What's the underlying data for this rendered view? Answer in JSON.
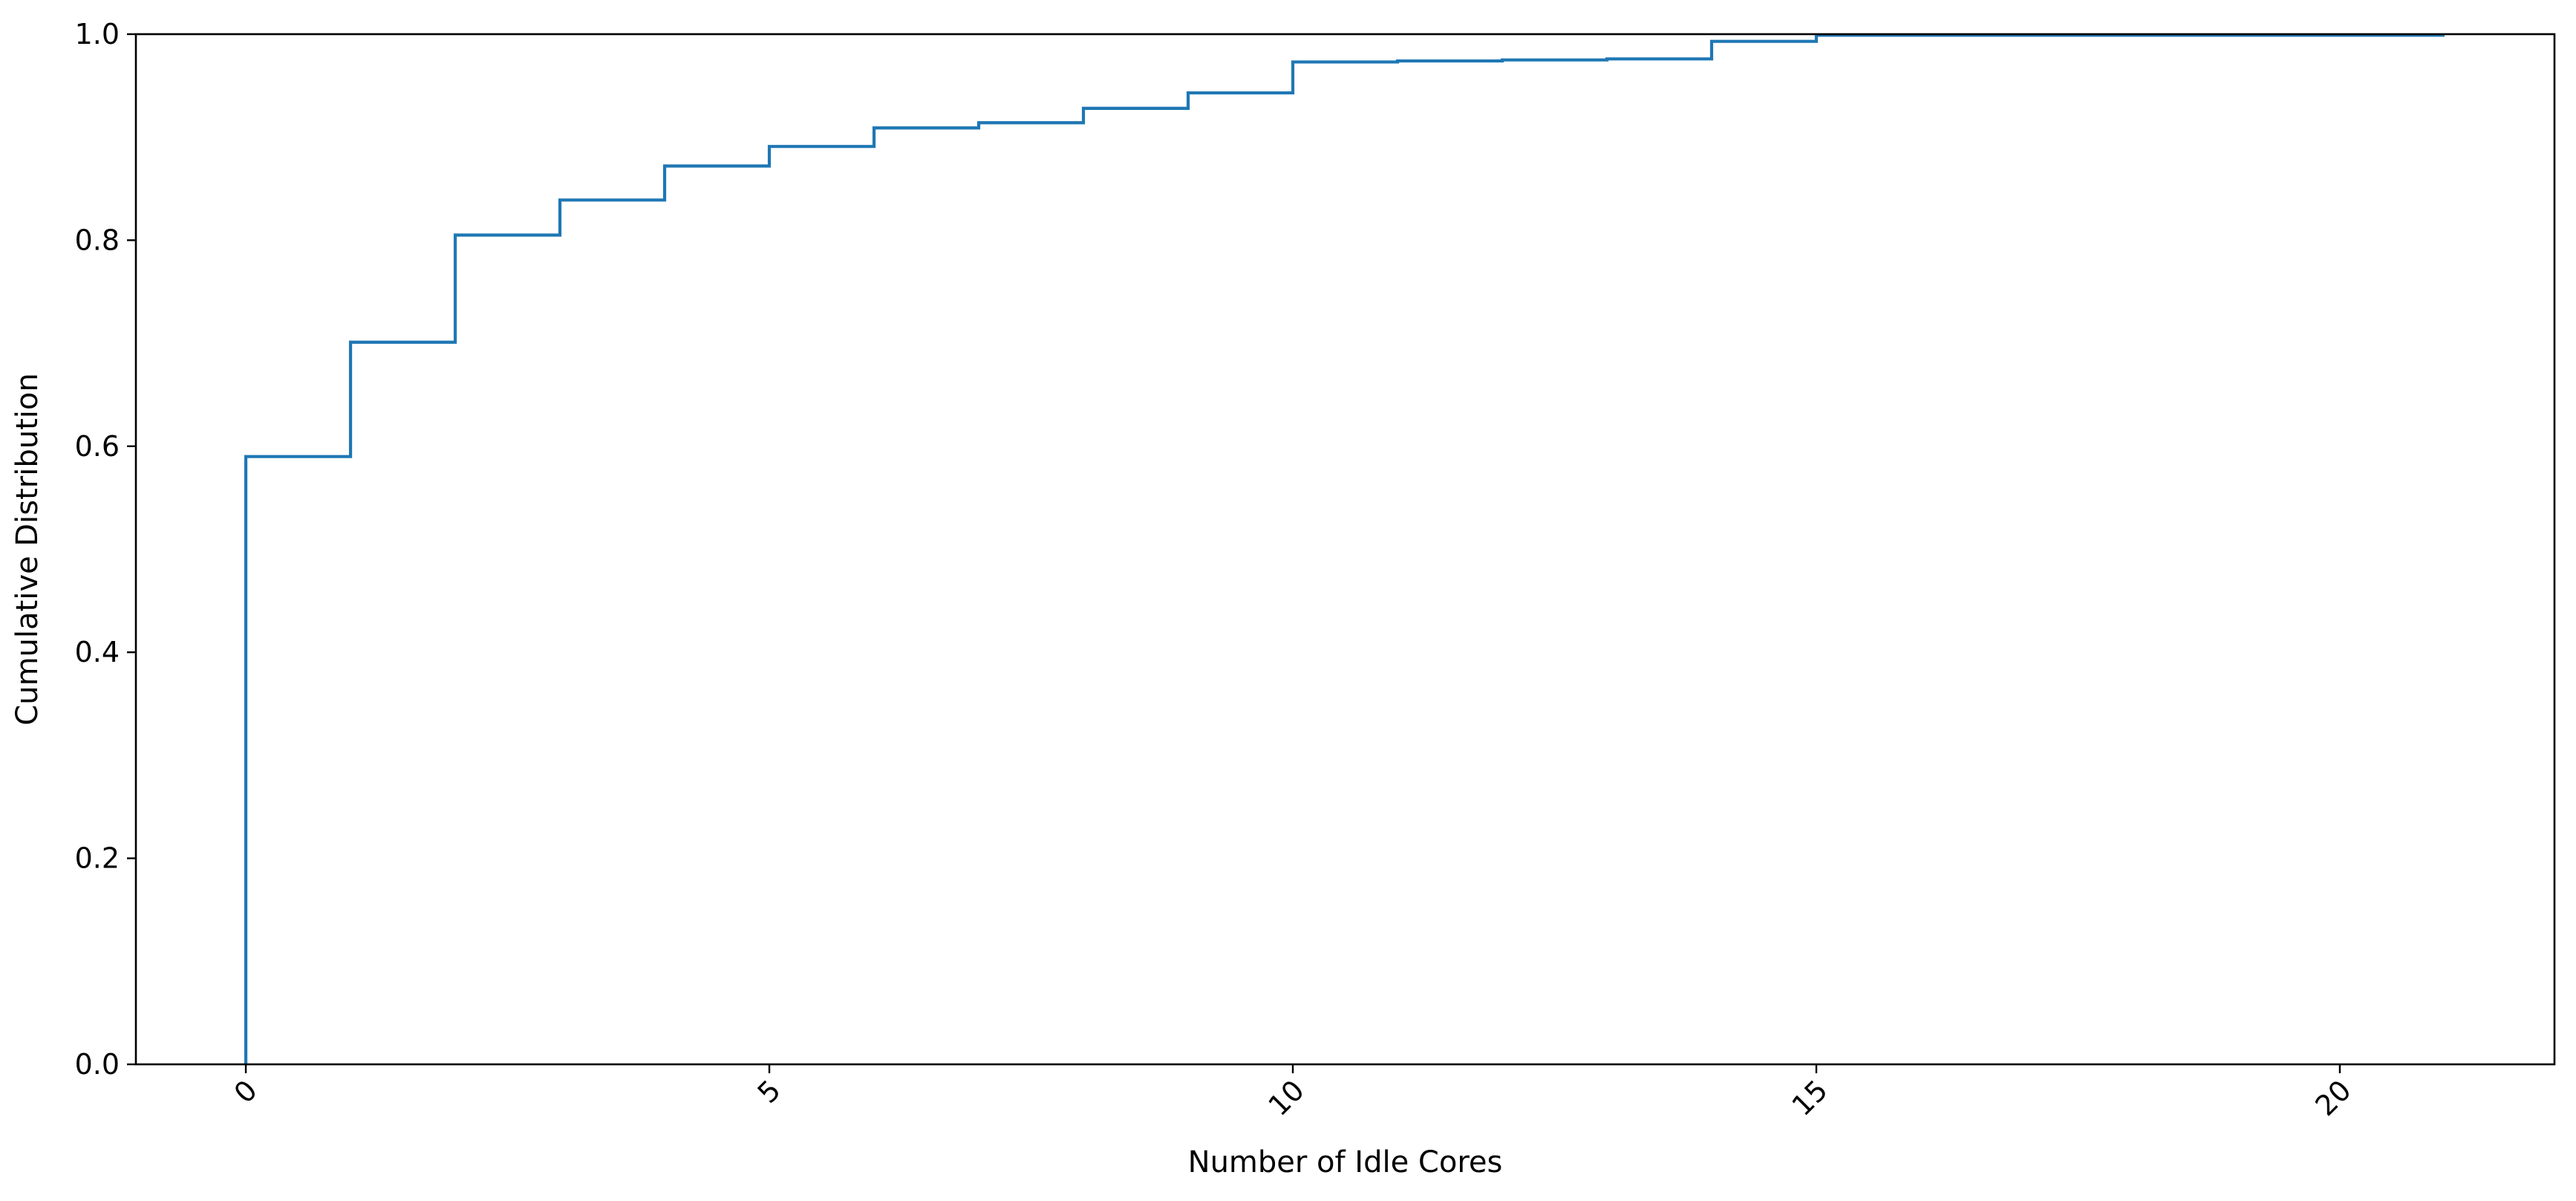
{
  "chart_data": {
    "type": "line",
    "drawstyle": "step",
    "title": "",
    "xlabel": "Number of Idle Cores",
    "ylabel": "Cumulative Distribution",
    "xlim": [
      -1.05,
      22.05
    ],
    "ylim": [
      0.0,
      1.0
    ],
    "xticks": [
      0,
      5,
      10,
      15,
      20
    ],
    "xtick_labels": [
      "0",
      "5",
      "10",
      "15",
      "20"
    ],
    "xtick_rotation": 45,
    "yticks": [
      0.0,
      0.2,
      0.4,
      0.6,
      0.8,
      1.0
    ],
    "ytick_labels": [
      "0.0",
      "0.2",
      "0.4",
      "0.6",
      "0.8",
      "1.0"
    ],
    "grid": false,
    "legend": "none",
    "series": [
      {
        "color": "#1f77b4",
        "x": [
          0,
          0,
          1,
          2,
          3,
          4,
          5,
          6,
          7,
          8,
          9,
          10,
          11,
          12,
          13,
          14,
          15,
          16,
          17,
          18,
          19,
          20,
          21
        ],
        "y": [
          0.0,
          0.59,
          0.701,
          0.805,
          0.839,
          0.872,
          0.891,
          0.909,
          0.914,
          0.928,
          0.943,
          0.973,
          0.974,
          0.975,
          0.976,
          0.993,
          0.999,
          0.999,
          0.999,
          0.999,
          0.999,
          0.999,
          0.999
        ]
      }
    ]
  }
}
